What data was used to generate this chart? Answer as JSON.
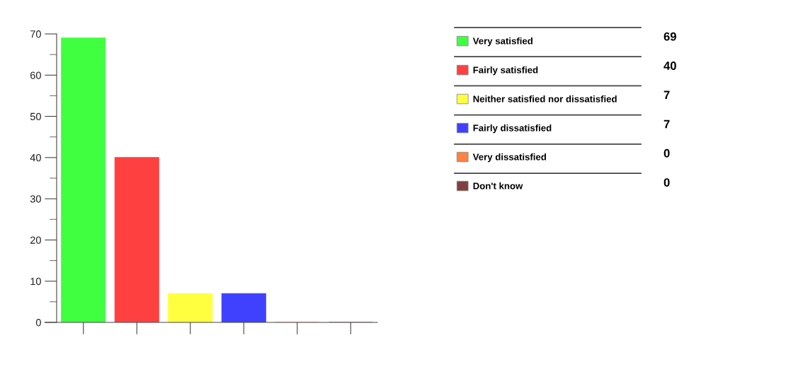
{
  "chart_data": {
    "type": "bar",
    "categories": [
      null,
      null,
      null,
      null,
      null,
      null
    ],
    "series": [
      {
        "name": "Very satisfied",
        "color": "#40ff40",
        "values": [
          69,
          null,
          null,
          null,
          null,
          null
        ]
      },
      {
        "name": "Fairly satisfied",
        "color": "#ff4040",
        "values": [
          null,
          40,
          null,
          null,
          null,
          null
        ]
      },
      {
        "name": "Neither satisfied nor dissatisfied",
        "color": "#ffff40",
        "values": [
          null,
          null,
          7,
          null,
          null,
          null
        ]
      },
      {
        "name": "Fairly dissatisfied",
        "color": "#4040ff",
        "values": [
          null,
          null,
          null,
          7,
          null,
          null
        ]
      },
      {
        "name": "Very dissatisfied",
        "color": "#ff8040",
        "values": [
          null,
          null,
          null,
          null,
          0,
          null
        ]
      },
      {
        "name": "Don't know",
        "color": "#804040",
        "values": [
          null,
          null,
          null,
          null,
          null,
          0
        ]
      }
    ],
    "annotations": [
      "69",
      "40",
      "7",
      "7",
      "0",
      "0"
    ],
    "ylim": [
      0,
      70
    ],
    "yticks": [
      0,
      10,
      20,
      30,
      40,
      50,
      60,
      70
    ],
    "tick_labels": "y",
    "legend": "right",
    "grid": false
  }
}
